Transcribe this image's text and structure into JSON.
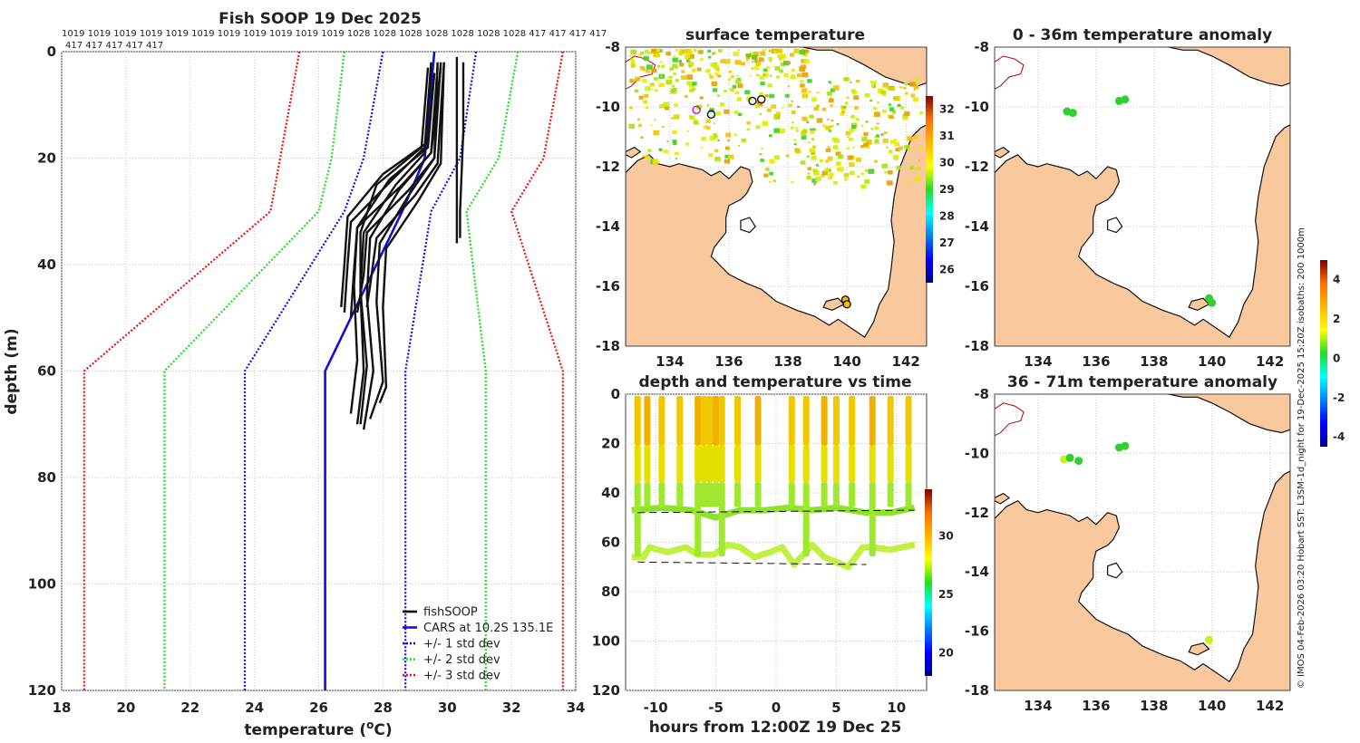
{
  "chart_data": [
    {
      "type": "line",
      "id": "profile",
      "title": "Fish SOOP 19 Dec 2025",
      "xlabel_main": "temperature (",
      "xlabel_sup": "o",
      "xlabel_end": "C)",
      "ylabel": "depth (m)",
      "xlim": [
        18,
        34
      ],
      "ylim": [
        0,
        120
      ],
      "xticks": [
        "18",
        "20",
        "22",
        "24",
        "26",
        "28",
        "30",
        "32",
        "34"
      ],
      "yticks": [
        "0",
        "20",
        "40",
        "60",
        "80",
        "100",
        "120"
      ],
      "pressure_labels_row1": "1019 1019 1019 1019 1019 1019 1019 1019 1019 1019 1019 1028 1028 1028 1028 1028 1028 1028 417 417 417 417",
      "pressure_labels_row2": "417 417 417 417 417",
      "legend": [
        "fishSOOP",
        "CARS at 10.2S 135.1E",
        "+/- 1 std dev",
        "+/- 2 std dev",
        "+/- 3 std dev"
      ],
      "series": [
        {
          "name": "CARS mean",
          "color": "#1010dd",
          "x": [
            29.6,
            29.3,
            28.6,
            26.2,
            26.2
          ],
          "y": [
            0,
            20,
            30,
            60,
            120
          ]
        },
        {
          "name": "-1 std",
          "color": "#1010dd",
          "x": [
            28.0,
            27.4,
            26.8,
            23.7,
            23.7
          ],
          "y": [
            0,
            20,
            30,
            60,
            120
          ]
        },
        {
          "name": "+1 std",
          "color": "#1010dd",
          "x": [
            30.9,
            30.4,
            29.5,
            28.7,
            28.7
          ],
          "y": [
            0,
            20,
            30,
            60,
            120
          ]
        },
        {
          "name": "-2 std",
          "color": "#22dd22",
          "x": [
            26.8,
            26.4,
            26.0,
            21.2,
            21.2
          ],
          "y": [
            0,
            20,
            30,
            60,
            120
          ]
        },
        {
          "name": "+2 std",
          "color": "#22dd22",
          "x": [
            32.2,
            31.6,
            30.6,
            31.2,
            31.2
          ],
          "y": [
            0,
            20,
            30,
            60,
            120
          ]
        },
        {
          "name": "-3 std",
          "color": "#ee1111",
          "x": [
            25.4,
            24.8,
            24.5,
            18.7,
            18.7
          ],
          "y": [
            0,
            20,
            30,
            60,
            120
          ]
        },
        {
          "name": "+3 std",
          "color": "#ee1111",
          "x": [
            33.6,
            33.0,
            32.0,
            33.6,
            33.6
          ],
          "y": [
            0,
            20,
            30,
            60,
            120
          ]
        }
      ],
      "fish_profiles": [
        {
          "x": [
            29.5,
            29.3,
            28.3,
            27.0,
            26.9,
            26.8
          ],
          "y": [
            2,
            18,
            24,
            32,
            40,
            49
          ]
        },
        {
          "x": [
            29.7,
            29.5,
            28.6,
            27.2,
            27.1,
            27.0
          ],
          "y": [
            3,
            19,
            25,
            33,
            41,
            50
          ]
        },
        {
          "x": [
            29.8,
            29.6,
            28.8,
            27.5,
            27.4,
            27.2
          ],
          "y": [
            2,
            20,
            26,
            34,
            42,
            49
          ]
        },
        {
          "x": [
            29.6,
            29.4,
            28.0,
            26.9,
            26.8,
            26.7
          ],
          "y": [
            4,
            17,
            23,
            31,
            40,
            48
          ]
        },
        {
          "x": [
            29.9,
            29.7,
            29.0,
            27.8,
            27.6,
            27.5
          ],
          "y": [
            2,
            21,
            27,
            35,
            44,
            48
          ]
        },
        {
          "x": [
            29.4,
            29.2,
            27.8,
            27.3,
            27.3,
            27.4,
            27.2
          ],
          "y": [
            3,
            18,
            25,
            34,
            45,
            60,
            70
          ]
        },
        {
          "x": [
            29.8,
            29.5,
            28.5,
            27.6,
            27.5,
            27.7,
            27.4
          ],
          "y": [
            3,
            19,
            26,
            35,
            46,
            60,
            71
          ]
        },
        {
          "x": [
            29.7,
            29.6,
            28.8,
            27.9,
            27.8,
            28.0,
            27.6
          ],
          "y": [
            2,
            20,
            27,
            36,
            47,
            62,
            69
          ]
        },
        {
          "x": [
            29.6,
            29.4,
            28.2,
            27.2,
            27.1,
            27.2,
            27.0
          ],
          "y": [
            4,
            18,
            24,
            33,
            44,
            58,
            68
          ]
        },
        {
          "x": [
            29.9,
            29.8,
            29.1,
            28.1,
            28.0,
            28.1,
            27.9
          ],
          "y": [
            2,
            21,
            28,
            37,
            48,
            63,
            66
          ]
        },
        {
          "x": [
            29.5,
            29.3,
            28.4,
            27.4,
            27.3,
            27.5,
            27.3
          ],
          "y": [
            3,
            19,
            25,
            34,
            45,
            59,
            70
          ]
        },
        {
          "x": [
            30.3,
            30.3,
            30.3,
            30.3
          ],
          "y": [
            1,
            15,
            30,
            36
          ]
        },
        {
          "x": [
            30.5,
            30.5,
            30.4,
            30.4
          ],
          "y": [
            2,
            15,
            30,
            35
          ]
        }
      ]
    },
    {
      "type": "scatter",
      "id": "surface_map",
      "title": "surface temperature",
      "xticks": [
        "134",
        "136",
        "138",
        "140",
        "142"
      ],
      "yticks": [
        "-8",
        "-10",
        "-12",
        "-14",
        "-16",
        "-18"
      ],
      "xlim": [
        132.5,
        142.7
      ],
      "ylim": [
        -18,
        -8
      ],
      "colorbar_ticks": [
        "26",
        "27",
        "28",
        "29",
        "30",
        "31",
        "32"
      ],
      "colorbar_range": [
        25.5,
        32.5
      ],
      "points": [
        [
          134.9,
          -10.1
        ],
        [
          135.4,
          -10.25
        ],
        [
          136.8,
          -9.8
        ],
        [
          137.1,
          -9.75
        ],
        [
          139.95,
          -16.45
        ],
        [
          140.0,
          -16.6
        ]
      ]
    },
    {
      "type": "heatmap",
      "id": "depth_time",
      "title": "depth and temperature vs time",
      "xlabel": "hours from 12:00Z 19 Dec 25",
      "xticks": [
        "-10",
        "-5",
        "0",
        "5",
        "10"
      ],
      "yticks": [
        "0",
        "20",
        "40",
        "60",
        "80",
        "100",
        "120"
      ],
      "xlim": [
        -12.5,
        12.5
      ],
      "ylim": [
        0,
        120
      ],
      "colorbar_ticks": [
        "20",
        "25",
        "30"
      ],
      "colorbar_range": [
        18,
        34
      ],
      "cast_hours": [
        -11.5,
        -10.7,
        -9.5,
        -8.0,
        -6.5,
        -6.0,
        -5.5,
        -5.0,
        -4.5,
        -3.2,
        -1.5,
        1.3,
        2.5,
        4.0,
        5.0,
        6.3,
        8.0,
        9.5,
        11.0
      ]
    },
    {
      "type": "scatter",
      "id": "anomaly_0_36",
      "title": "0 - 36m temperature anomaly",
      "xticks": [
        "134",
        "136",
        "138",
        "140",
        "142"
      ],
      "yticks": [
        "-8",
        "-10",
        "-12",
        "-14",
        "-16",
        "-18"
      ],
      "xlim": [
        132.5,
        142.7
      ],
      "ylim": [
        -18,
        -8
      ],
      "points": [
        [
          135.0,
          -10.15
        ],
        [
          135.2,
          -10.2
        ],
        [
          136.8,
          -9.8
        ],
        [
          137.0,
          -9.75
        ],
        [
          139.9,
          -16.4
        ],
        [
          140.0,
          -16.55
        ]
      ]
    },
    {
      "type": "scatter",
      "id": "anomaly_36_71",
      "title": "36 - 71m temperature anomaly",
      "xticks": [
        "134",
        "136",
        "138",
        "140",
        "142"
      ],
      "yticks": [
        "-8",
        "-10",
        "-12",
        "-14",
        "-16",
        "-18"
      ],
      "xlim": [
        132.5,
        142.7
      ],
      "ylim": [
        -18,
        -8
      ],
      "colorbar_ticks": [
        "-4",
        "-2",
        "0",
        "2",
        "4"
      ],
      "colorbar_range": [
        -4.5,
        5
      ],
      "points": [
        [
          134.9,
          -10.2
        ],
        [
          135.1,
          -10.15
        ],
        [
          135.4,
          -10.25
        ],
        [
          136.8,
          -9.8
        ],
        [
          137.0,
          -9.75
        ],
        [
          139.9,
          -16.3
        ]
      ]
    }
  ],
  "credit": "© IMOS 04-Feb-2026 03:20 Hobart SST: L3SM-1d_night for 19-Dec-2025 15:20Z isobaths: 200  1000m",
  "colors": {
    "land": "#f9c99d",
    "coast": "#111111",
    "isobath": "#b00000",
    "grid": "#c8c8c8"
  }
}
